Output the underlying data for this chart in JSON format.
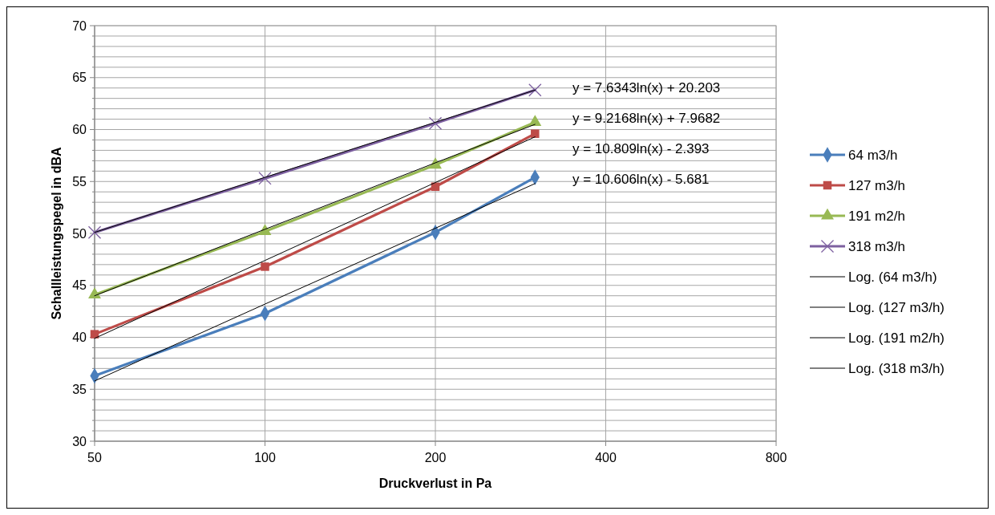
{
  "chart_data": {
    "type": "line",
    "xlabel": "Druckverlust in Pa",
    "ylabel": "Schallleistungspegel in dBA",
    "log": "x",
    "xlim": [
      50,
      800
    ],
    "xticks": [
      50,
      100,
      200,
      400,
      800
    ],
    "ylim": [
      30,
      70
    ],
    "yticks": [
      30,
      {
        "value": 31,
        "label": null
      },
      {
        "value": 32,
        "label": null
      },
      {
        "value": 33,
        "label": null
      },
      {
        "value": 34,
        "label": null
      },
      35,
      {
        "value": 36,
        "label": null
      },
      {
        "value": 37,
        "label": null
      },
      {
        "value": 38,
        "label": null
      },
      {
        "value": 39,
        "label": null
      },
      40,
      {
        "value": 41,
        "label": null
      },
      {
        "value": 42,
        "label": null
      },
      {
        "value": 43,
        "label": null
      },
      {
        "value": 44,
        "label": null
      },
      45,
      {
        "value": 46,
        "label": null
      },
      {
        "value": 47,
        "label": null
      },
      {
        "value": 48,
        "label": null
      },
      {
        "value": 49,
        "label": null
      },
      50,
      {
        "value": 51,
        "label": null
      },
      {
        "value": 52,
        "label": null
      },
      {
        "value": 53,
        "label": null
      },
      {
        "value": 54,
        "label": null
      },
      55,
      {
        "value": 56,
        "label": null
      },
      {
        "value": 57,
        "label": null
      },
      {
        "value": 58,
        "label": null
      },
      {
        "value": 59,
        "label": null
      },
      60,
      {
        "value": 61,
        "label": null
      },
      {
        "value": 62,
        "label": null
      },
      {
        "value": 63,
        "label": null
      },
      {
        "value": 64,
        "label": null
      },
      65,
      {
        "value": 66,
        "label": null
      },
      {
        "value": 67,
        "label": null
      },
      {
        "value": 68,
        "label": null
      },
      {
        "value": 69,
        "label": null
      },
      70
    ],
    "grid": true,
    "legend": "right",
    "x": [
      50,
      100,
      200,
      300
    ],
    "series": [
      {
        "name": "64 m3/h",
        "color": "#4a7ebb",
        "marker": "diamond",
        "values": [
          36.3,
          42.3,
          50.1,
          55.4
        ]
      },
      {
        "name": "127 m3/h",
        "color": "#be4b48",
        "marker": "square",
        "values": [
          40.3,
          46.8,
          54.5,
          59.6
        ]
      },
      {
        "name": "191 m2/h",
        "color": "#98b954",
        "marker": "triangle",
        "values": [
          44.1,
          50.2,
          56.6,
          60.7
        ]
      },
      {
        "name": "318 m3/h",
        "color": "#7d60a0",
        "marker": "cross",
        "values": [
          50.1,
          55.3,
          60.6,
          63.8
        ]
      },
      {
        "name": "Log. (64 m3/h)",
        "color": "#000000",
        "marker": "none",
        "values": [
          35.8,
          43.2,
          50.5,
          54.8
        ]
      },
      {
        "name": "Log. (127 m3/h)",
        "color": "#000000",
        "marker": "none",
        "values": [
          39.9,
          47.4,
          54.9,
          59.3
        ]
      },
      {
        "name": "Log. (191 m2/h)",
        "color": "#000000",
        "marker": "none",
        "values": [
          44.0,
          50.4,
          56.8,
          60.5
        ]
      },
      {
        "name": "Log. (318 m3/h)",
        "color": "#000000",
        "marker": "none",
        "values": [
          50.1,
          55.4,
          60.7,
          63.8
        ]
      }
    ],
    "annotations": [
      "y = 7.6343ln(x) + 20.203",
      "y = 9.2168ln(x) + 7.9682",
      "y = 10.809ln(x) - 2.393",
      "y = 10.606ln(x) - 5.681"
    ]
  }
}
